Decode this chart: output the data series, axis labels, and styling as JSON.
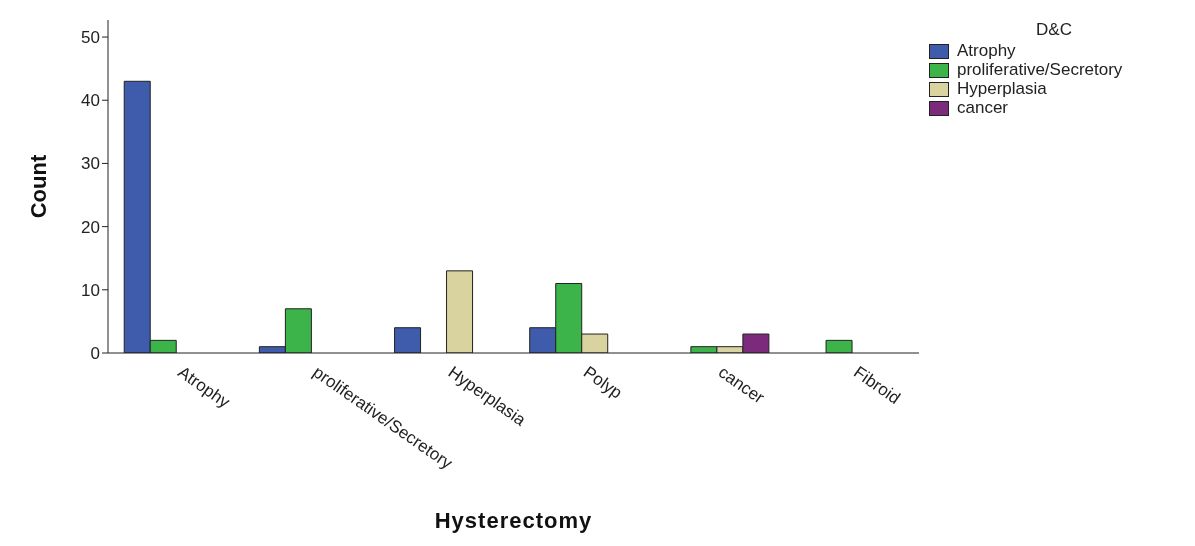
{
  "chart_data": {
    "type": "bar",
    "xlabel": "Hysterectomy",
    "ylabel": "Count",
    "legend_title": "D&C",
    "categories": [
      "Atrophy",
      "proliferative/Secretory",
      "Hyperplasia",
      "Polyp",
      "cancer",
      "Fibroid"
    ],
    "series": [
      {
        "name": "Atrophy",
        "color": "#3f5bab",
        "values": [
          43,
          1,
          4,
          4,
          null,
          null
        ]
      },
      {
        "name": "proliferative/Secretory",
        "color": "#3cb449",
        "values": [
          2,
          7,
          null,
          11,
          1,
          2
        ]
      },
      {
        "name": "Hyperplasia",
        "color": "#d9d3a0",
        "values": [
          null,
          null,
          13,
          3,
          1,
          null
        ]
      },
      {
        "name": "cancer",
        "color": "#7b2a7c",
        "values": [
          null,
          null,
          null,
          null,
          3,
          null
        ]
      }
    ],
    "ylim": [
      0,
      52.7
    ],
    "yticks": [
      0,
      10,
      20,
      30,
      40,
      50
    ],
    "grid": false,
    "legend": "top right"
  }
}
